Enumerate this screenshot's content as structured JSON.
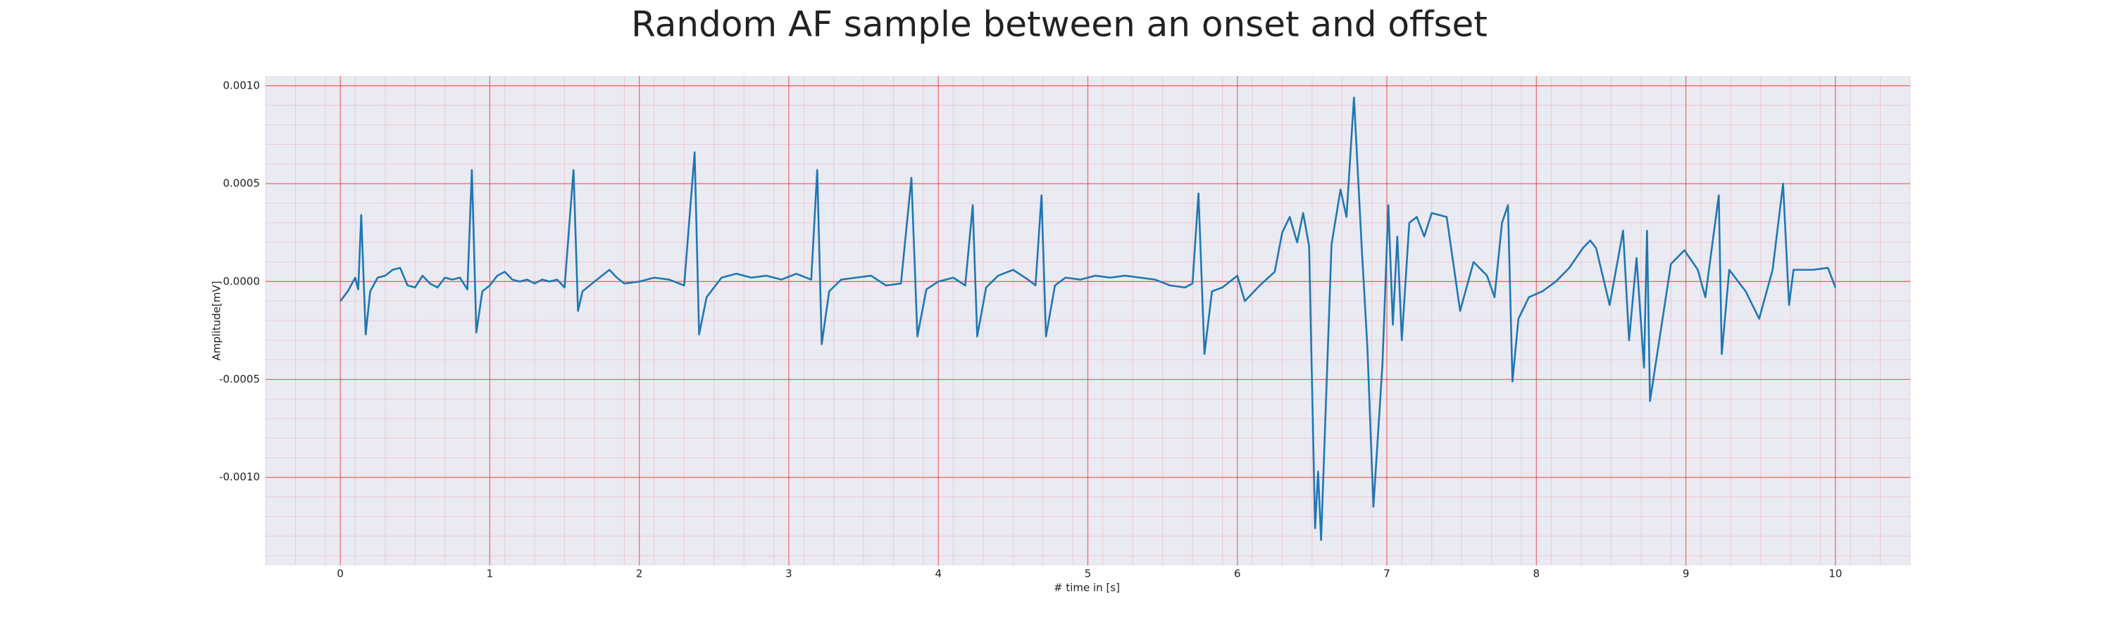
{
  "chart_data": {
    "type": "line",
    "title": "Random AF sample between an onset and offset",
    "x_label": "# time in [s]",
    "y_label": "Amplitude[mV]",
    "x": [
      0.0,
      0.05,
      0.1,
      0.12,
      0.14,
      0.17,
      0.2,
      0.25,
      0.3,
      0.35,
      0.4,
      0.45,
      0.5,
      0.55,
      0.6,
      0.65,
      0.7,
      0.75,
      0.8,
      0.85,
      0.88,
      0.91,
      0.95,
      1.0,
      1.05,
      1.1,
      1.15,
      1.2,
      1.25,
      1.3,
      1.35,
      1.4,
      1.45,
      1.5,
      1.56,
      1.59,
      1.62,
      1.7,
      1.8,
      1.85,
      1.9,
      2.0,
      2.1,
      2.2,
      2.3,
      2.37,
      2.4,
      2.45,
      2.55,
      2.65,
      2.75,
      2.85,
      2.95,
      3.05,
      3.15,
      3.19,
      3.22,
      3.27,
      3.35,
      3.45,
      3.55,
      3.65,
      3.75,
      3.82,
      3.86,
      3.92,
      4.0,
      4.1,
      4.18,
      4.23,
      4.26,
      4.32,
      4.4,
      4.5,
      4.6,
      4.65,
      4.69,
      4.72,
      4.78,
      4.85,
      4.95,
      5.05,
      5.15,
      5.25,
      5.35,
      5.45,
      5.55,
      5.65,
      5.7,
      5.74,
      5.78,
      5.83,
      5.9,
      6.0,
      6.05,
      6.15,
      6.25,
      6.3,
      6.35,
      6.4,
      6.44,
      6.48,
      6.52,
      6.54,
      6.56,
      6.63,
      6.69,
      6.73,
      6.78,
      6.83,
      6.87,
      6.91,
      6.97,
      7.01,
      7.04,
      7.07,
      7.1,
      7.15,
      7.2,
      7.25,
      7.3,
      7.4,
      7.49,
      7.58,
      7.67,
      7.72,
      7.77,
      7.81,
      7.84,
      7.88,
      7.95,
      8.04,
      8.13,
      8.22,
      8.31,
      8.36,
      8.4,
      8.49,
      8.58,
      8.62,
      8.67,
      8.72,
      8.74,
      8.76,
      8.81,
      8.9,
      8.99,
      9.08,
      9.13,
      9.22,
      9.24,
      9.29,
      9.4,
      9.49,
      9.58,
      9.65,
      9.69,
      9.72,
      9.85,
      9.95,
      10.0
    ],
    "values": [
      -0.0001,
      -5e-05,
      2e-05,
      -4e-05,
      0.00034,
      -0.00027,
      -5e-05,
      2e-05,
      3e-05,
      6e-05,
      7e-05,
      -2e-05,
      -3e-05,
      3e-05,
      -1e-05,
      -3e-05,
      2e-05,
      1e-05,
      2e-05,
      -4e-05,
      0.00057,
      -0.00026,
      -5e-05,
      -2e-05,
      3e-05,
      5e-05,
      1e-05,
      0,
      1e-05,
      -1e-05,
      1e-05,
      0,
      1e-05,
      -3e-05,
      0.00057,
      -0.00015,
      -5e-05,
      0,
      6e-05,
      2e-05,
      -1e-05,
      0,
      2e-05,
      1e-05,
      -2e-05,
      0.00066,
      -0.00027,
      -8e-05,
      2e-05,
      4e-05,
      2e-05,
      3e-05,
      1e-05,
      4e-05,
      1e-05,
      0.00057,
      -0.00032,
      -5e-05,
      1e-05,
      2e-05,
      3e-05,
      -2e-05,
      -1e-05,
      0.00053,
      -0.00028,
      -4e-05,
      0,
      2e-05,
      -2e-05,
      0.00039,
      -0.00028,
      -3e-05,
      3e-05,
      6e-05,
      1e-05,
      -2e-05,
      0.00044,
      -0.00028,
      -2e-05,
      2e-05,
      1e-05,
      3e-05,
      2e-05,
      3e-05,
      2e-05,
      1e-05,
      -2e-05,
      -3e-05,
      -1e-05,
      0.00045,
      -0.00037,
      -5e-05,
      -3e-05,
      3e-05,
      -0.0001,
      -2e-05,
      5e-05,
      0.00025,
      0.00033,
      0.0002,
      0.00035,
      0.00018,
      -0.00126,
      -0.00097,
      -0.00132,
      0.00019,
      0.00047,
      0.00033,
      0.00094,
      0.0002,
      -0.00034,
      -0.00115,
      -0.00043,
      0.00039,
      -0.00022,
      0.00023,
      -0.0003,
      0.0003,
      0.00033,
      0.00023,
      0.00035,
      0.00033,
      -0.00015,
      0.0001,
      3e-05,
      -8e-05,
      0.0003,
      0.00039,
      -0.00051,
      -0.00019,
      -8e-05,
      -5e-05,
      0,
      7e-05,
      0.00017,
      0.00021,
      0.00017,
      -0.00012,
      0.00026,
      -0.0003,
      0.00012,
      -0.00044,
      0.00026,
      -0.00061,
      -0.00036,
      9e-05,
      0.00016,
      6e-05,
      -8e-05,
      0.00044,
      -0.00037,
      6e-05,
      -5e-05,
      -0.00019,
      6e-05,
      0.0005,
      -0.00012,
      6e-05,
      6e-05,
      7e-05,
      -3e-05
    ],
    "color": "#1f77b4",
    "xlim": [
      -0.5,
      10.5
    ],
    "xticks": [
      0,
      1,
      2,
      3,
      4,
      5,
      6,
      7,
      8,
      9,
      10
    ],
    "ylim": [
      -0.00145,
      0.00105
    ],
    "yticks": [
      {
        "value": 0.001,
        "label": "0.0010"
      },
      {
        "value": 0.0005,
        "label": "0.0005"
      },
      {
        "value": 0,
        "label": "0.0000"
      },
      {
        "value": -0.0005,
        "label": "-0.0005"
      },
      {
        "value": -0.001,
        "label": "-0.0010"
      }
    ],
    "grid": true,
    "grid_color": "#ee4444",
    "background": "#eaeaf2"
  }
}
